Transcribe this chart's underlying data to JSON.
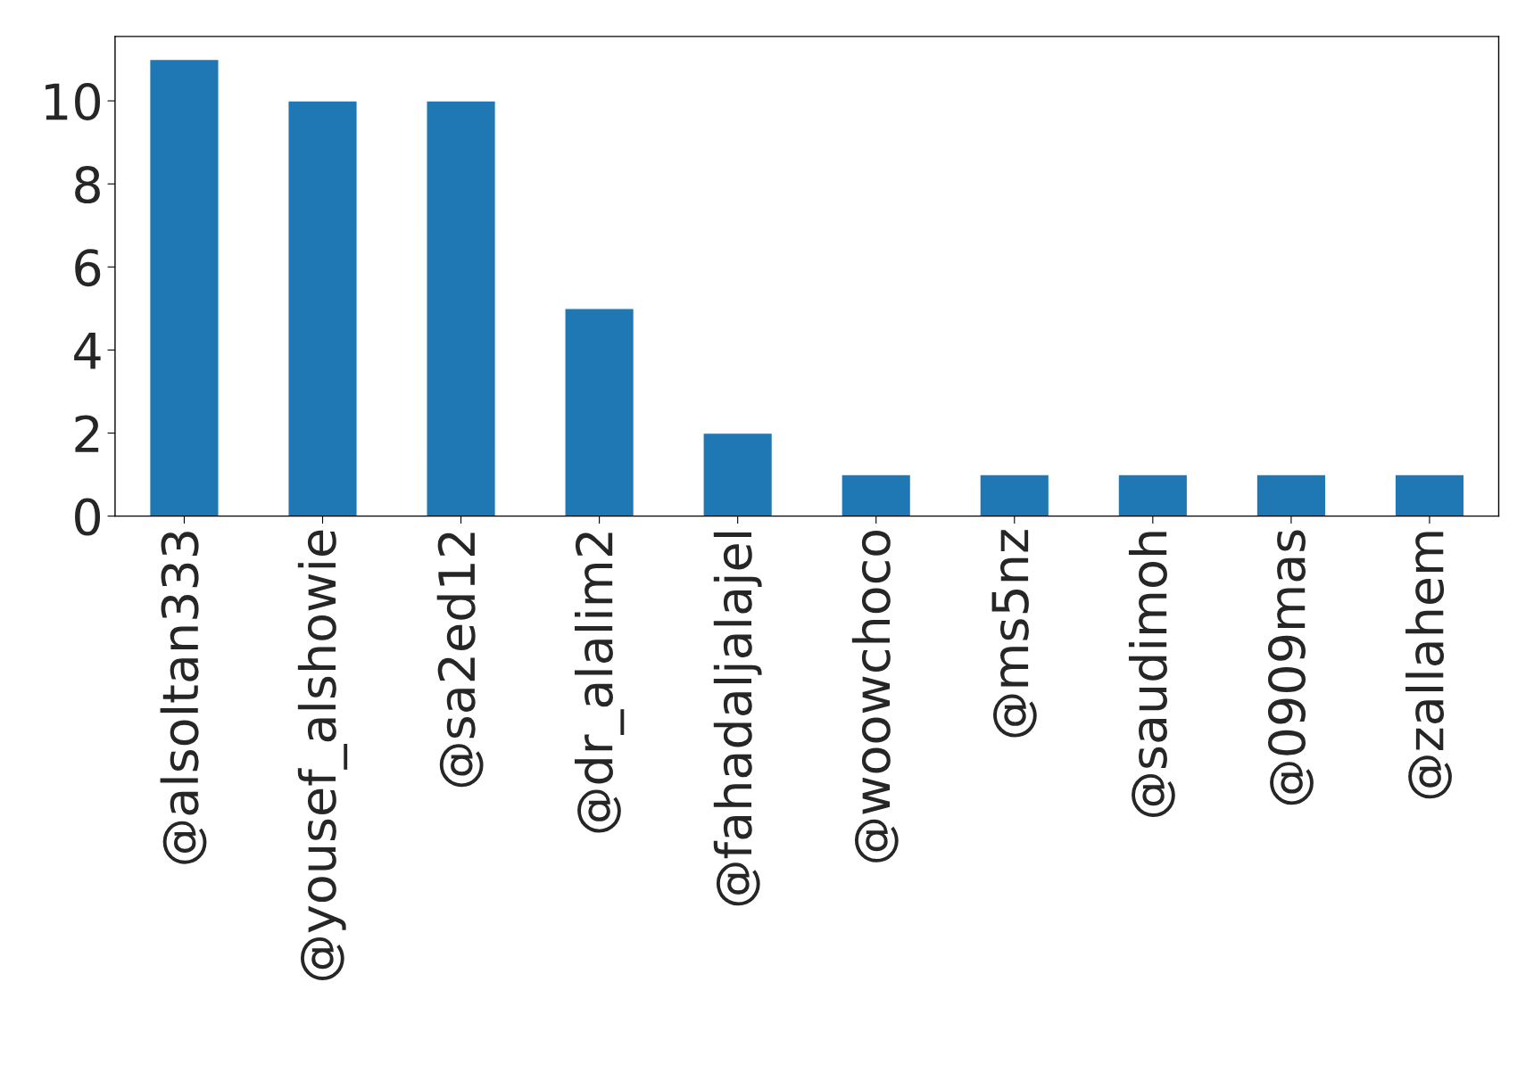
{
  "chart_data": {
    "type": "bar",
    "categories": [
      "@alsoltan333",
      "@yousef_alshowie",
      "@sa2ed12",
      "@dr_alalim2",
      "@fahadaljalajel",
      "@woowchoco",
      "@ms5nz",
      "@saudimoh",
      "@0909mas",
      "@zallahem"
    ],
    "values": [
      11,
      10,
      10,
      5,
      2,
      1,
      1,
      1,
      1,
      1
    ],
    "color": "#1f77b4",
    "ylim": [
      0,
      11.55
    ],
    "yticks": [
      0,
      2,
      4,
      6,
      8,
      10
    ],
    "grid": false,
    "legend": false
  }
}
